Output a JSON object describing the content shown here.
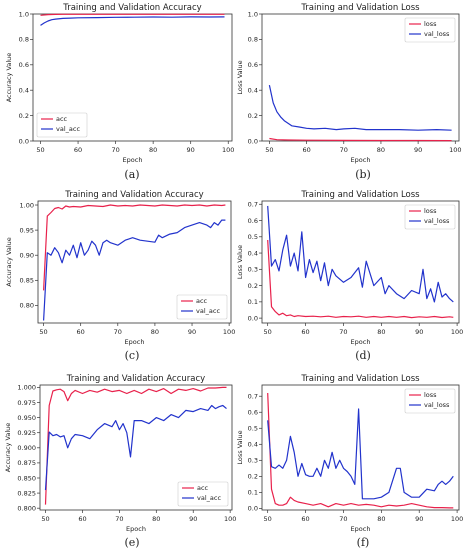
{
  "colors": {
    "train": "#e8214b",
    "val": "#2233cc",
    "axis": "#333333",
    "text": "#222222"
  },
  "captions": [
    "(a)",
    "(b)",
    "(c)",
    "(d)",
    "(e)",
    "(f)"
  ],
  "chart_data": [
    {
      "type": "line",
      "title": "Training and Validation Accuracy",
      "xlabel": "Epoch",
      "ylabel": "Accuracy Value",
      "xlim": [
        48,
        101
      ],
      "ylim": [
        0.0,
        1.0
      ],
      "xticks": [
        50,
        60,
        70,
        80,
        90,
        100
      ],
      "yticks": [
        0.0,
        0.2,
        0.4,
        0.6,
        0.8,
        1.0
      ],
      "ytick_labels": [
        "0.0",
        "0.2",
        "0.4",
        "0.6",
        "0.8",
        "1.0"
      ],
      "legend_position": "bottom-left",
      "series": [
        {
          "name": "acc",
          "color": "#e8214b",
          "x": [
            50,
            52,
            54,
            56,
            60,
            70,
            80,
            90,
            99
          ],
          "y": [
            0.99,
            0.995,
            0.997,
            0.998,
            0.998,
            0.998,
            0.998,
            0.998,
            0.998
          ]
        },
        {
          "name": "val_acc",
          "color": "#2233cc",
          "x": [
            50,
            51,
            52,
            53,
            54,
            56,
            58,
            60,
            65,
            70,
            75,
            80,
            85,
            90,
            95,
            99
          ],
          "y": [
            0.91,
            0.93,
            0.945,
            0.955,
            0.96,
            0.965,
            0.968,
            0.97,
            0.972,
            0.974,
            0.975,
            0.976,
            0.975,
            0.977,
            0.976,
            0.977
          ]
        }
      ]
    },
    {
      "type": "line",
      "title": "Training and Validation Loss",
      "xlabel": "Epoch",
      "ylabel": "Loss Value",
      "xlim": [
        48,
        101
      ],
      "ylim": [
        0.0,
        1.0
      ],
      "xticks": [
        50,
        60,
        70,
        80,
        90,
        100
      ],
      "yticks": [
        0.0,
        0.2,
        0.4,
        0.6,
        0.8,
        1.0
      ],
      "ytick_labels": [
        "0.0",
        "0.2",
        "0.4",
        "0.6",
        "0.8",
        "1.0"
      ],
      "legend_position": "top-right",
      "series": [
        {
          "name": "loss",
          "color": "#e8214b",
          "x": [
            50,
            52,
            55,
            60,
            70,
            80,
            90,
            99
          ],
          "y": [
            0.02,
            0.01,
            0.008,
            0.006,
            0.005,
            0.004,
            0.004,
            0.003
          ]
        },
        {
          "name": "val_loss",
          "color": "#2233cc",
          "x": [
            50,
            51,
            52,
            53,
            54,
            55,
            56,
            58,
            60,
            62,
            65,
            68,
            70,
            73,
            76,
            80,
            85,
            90,
            95,
            99
          ],
          "y": [
            0.44,
            0.3,
            0.23,
            0.19,
            0.16,
            0.14,
            0.12,
            0.11,
            0.1,
            0.095,
            0.1,
            0.09,
            0.095,
            0.1,
            0.09,
            0.09,
            0.09,
            0.085,
            0.09,
            0.085
          ]
        }
      ]
    },
    {
      "type": "line",
      "title": "Training and Validation Accuracy",
      "xlabel": "Epoch",
      "ylabel": "Accuracy Value",
      "xlim": [
        48.5,
        100.5
      ],
      "ylim": [
        0.765,
        1.008
      ],
      "xticks": [
        50,
        60,
        70,
        80,
        90,
        100
      ],
      "yticks": [
        0.8,
        0.85,
        0.9,
        0.95,
        1.0
      ],
      "ytick_labels": [
        "0.80",
        "0.85",
        "0.90",
        "0.95",
        "1.00"
      ],
      "legend_position": "bottom-right",
      "series": [
        {
          "name": "acc",
          "color": "#e8214b",
          "x": [
            50,
            51,
            52,
            53,
            54,
            55,
            56,
            57,
            58,
            60,
            62,
            64,
            66,
            68,
            70,
            72,
            74,
            76,
            78,
            80,
            82,
            84,
            86,
            88,
            90,
            92,
            94,
            96,
            98,
            99
          ],
          "y": [
            0.83,
            0.978,
            0.985,
            0.993,
            0.995,
            0.992,
            0.998,
            0.996,
            0.997,
            0.996,
            0.999,
            0.998,
            0.997,
            1.0,
            0.998,
            0.999,
            0.998,
            1.0,
            0.999,
            0.998,
            1.0,
            0.999,
            0.998,
            1.0,
            0.999,
            1.0,
            0.998,
            1.0,
            0.999,
            1.0
          ]
        },
        {
          "name": "val_acc",
          "color": "#2233cc",
          "x": [
            50,
            51,
            52,
            53,
            54,
            55,
            56,
            57,
            58,
            59,
            60,
            61,
            62,
            63,
            64,
            65,
            66,
            67,
            68,
            70,
            72,
            74,
            76,
            78,
            80,
            81,
            82,
            84,
            86,
            88,
            90,
            92,
            94,
            95,
            96,
            97,
            98,
            99
          ],
          "y": [
            0.77,
            0.905,
            0.9,
            0.915,
            0.905,
            0.885,
            0.91,
            0.9,
            0.92,
            0.895,
            0.925,
            0.9,
            0.91,
            0.928,
            0.92,
            0.9,
            0.925,
            0.93,
            0.925,
            0.92,
            0.93,
            0.935,
            0.93,
            0.928,
            0.926,
            0.94,
            0.935,
            0.942,
            0.945,
            0.955,
            0.96,
            0.965,
            0.96,
            0.955,
            0.965,
            0.96,
            0.97,
            0.97
          ]
        }
      ]
    },
    {
      "type": "line",
      "title": "Training and Validation Loss",
      "xlabel": "Epoch",
      "ylabel": "Loss Value",
      "xlim": [
        48.5,
        100.5
      ],
      "ylim": [
        -0.03,
        0.72
      ],
      "xticks": [
        50,
        60,
        70,
        80,
        90,
        100
      ],
      "yticks": [
        0.0,
        0.1,
        0.2,
        0.3,
        0.4,
        0.5,
        0.6,
        0.7
      ],
      "ytick_labels": [
        "0.0",
        "0.1",
        "0.2",
        "0.3",
        "0.4",
        "0.5",
        "0.6",
        "0.7"
      ],
      "legend_position": "top-right",
      "series": [
        {
          "name": "loss",
          "color": "#e8214b",
          "x": [
            50,
            51,
            52,
            53,
            54,
            55,
            56,
            57,
            58,
            60,
            62,
            64,
            66,
            68,
            70,
            72,
            74,
            76,
            78,
            80,
            82,
            84,
            86,
            88,
            90,
            92,
            94,
            96,
            98,
            99
          ],
          "y": [
            0.48,
            0.07,
            0.04,
            0.02,
            0.03,
            0.015,
            0.02,
            0.01,
            0.015,
            0.01,
            0.012,
            0.008,
            0.012,
            0.005,
            0.01,
            0.008,
            0.012,
            0.005,
            0.01,
            0.005,
            0.01,
            0.005,
            0.01,
            0.003,
            0.008,
            0.005,
            0.01,
            0.004,
            0.008,
            0.005
          ]
        },
        {
          "name": "val_loss",
          "color": "#2233cc",
          "x": [
            50,
            51,
            52,
            53,
            54,
            55,
            56,
            57,
            58,
            59,
            60,
            61,
            62,
            63,
            64,
            65,
            66,
            67,
            68,
            70,
            72,
            74,
            75,
            76,
            78,
            80,
            81,
            82,
            84,
            86,
            88,
            90,
            91,
            92,
            93,
            94,
            95,
            96,
            97,
            98,
            99
          ],
          "y": [
            0.69,
            0.32,
            0.36,
            0.29,
            0.42,
            0.51,
            0.32,
            0.4,
            0.29,
            0.53,
            0.25,
            0.36,
            0.28,
            0.35,
            0.23,
            0.34,
            0.2,
            0.3,
            0.26,
            0.22,
            0.25,
            0.31,
            0.19,
            0.35,
            0.2,
            0.25,
            0.15,
            0.2,
            0.15,
            0.12,
            0.17,
            0.15,
            0.3,
            0.12,
            0.18,
            0.1,
            0.22,
            0.13,
            0.15,
            0.12,
            0.1
          ]
        }
      ]
    },
    {
      "type": "line",
      "title": "Training and Validation Accuracy",
      "xlabel": "Epoch",
      "ylabel": "Accuracy Value",
      "xlim": [
        48.5,
        100.5
      ],
      "ylim": [
        0.797,
        1.004
      ],
      "xticks": [
        50,
        60,
        70,
        80,
        90,
        100
      ],
      "yticks": [
        0.8,
        0.825,
        0.85,
        0.875,
        0.9,
        0.925,
        0.95,
        0.975,
        1.0
      ],
      "ytick_labels": [
        "0.800",
        "0.825",
        "0.850",
        "0.875",
        "0.900",
        "0.925",
        "0.950",
        "0.975",
        "1.000"
      ],
      "legend_position": "bottom-right",
      "series": [
        {
          "name": "acc",
          "color": "#e8214b",
          "x": [
            50,
            51,
            52,
            53,
            54,
            55,
            56,
            57,
            58,
            60,
            62,
            64,
            66,
            68,
            70,
            72,
            74,
            76,
            78,
            80,
            82,
            84,
            86,
            88,
            90,
            92,
            94,
            96,
            98,
            99
          ],
          "y": [
            0.806,
            0.97,
            0.994,
            0.996,
            0.997,
            0.993,
            0.978,
            0.99,
            0.995,
            0.99,
            0.995,
            0.992,
            0.997,
            0.993,
            0.995,
            0.99,
            0.995,
            0.99,
            0.997,
            0.993,
            0.998,
            0.99,
            0.997,
            0.995,
            0.998,
            0.994,
            0.999,
            0.999,
            1.0,
            1.0
          ]
        },
        {
          "name": "val_acc",
          "color": "#2233cc",
          "x": [
            50,
            51,
            52,
            53,
            54,
            55,
            56,
            57,
            58,
            60,
            62,
            64,
            66,
            68,
            69,
            70,
            71,
            72,
            73,
            74,
            76,
            78,
            80,
            82,
            84,
            86,
            88,
            90,
            92,
            94,
            95,
            96,
            97,
            98,
            99
          ],
          "y": [
            0.83,
            0.926,
            0.92,
            0.922,
            0.918,
            0.92,
            0.9,
            0.915,
            0.922,
            0.92,
            0.915,
            0.93,
            0.94,
            0.935,
            0.945,
            0.93,
            0.94,
            0.925,
            0.885,
            0.945,
            0.945,
            0.94,
            0.95,
            0.945,
            0.955,
            0.95,
            0.962,
            0.96,
            0.965,
            0.962,
            0.97,
            0.965,
            0.968,
            0.97,
            0.965
          ]
        }
      ]
    },
    {
      "type": "line",
      "title": "Training and Validation Loss",
      "xlabel": "Epoch",
      "ylabel": "Loss Value",
      "xlim": [
        48.5,
        100.5
      ],
      "ylim": [
        -0.01,
        0.77
      ],
      "xticks": [
        50,
        60,
        70,
        80,
        90,
        100
      ],
      "yticks": [
        0.0,
        0.1,
        0.2,
        0.3,
        0.4,
        0.5,
        0.6,
        0.7
      ],
      "ytick_labels": [
        "0.0",
        "0.1",
        "0.2",
        "0.3",
        "0.4",
        "0.5",
        "0.6",
        "0.7"
      ],
      "legend_position": "top-right",
      "series": [
        {
          "name": "loss",
          "color": "#e8214b",
          "x": [
            50,
            51,
            52,
            53,
            54,
            55,
            56,
            57,
            58,
            60,
            62,
            64,
            66,
            68,
            70,
            72,
            74,
            76,
            78,
            80,
            82,
            84,
            86,
            88,
            90,
            92,
            94,
            96,
            98,
            99
          ],
          "y": [
            0.72,
            0.12,
            0.03,
            0.02,
            0.02,
            0.03,
            0.07,
            0.05,
            0.04,
            0.03,
            0.02,
            0.03,
            0.01,
            0.03,
            0.02,
            0.03,
            0.02,
            0.025,
            0.02,
            0.01,
            0.02,
            0.015,
            0.02,
            0.03,
            0.02,
            0.01,
            0.005,
            0.005,
            0.003,
            0.003
          ]
        },
        {
          "name": "val_loss",
          "color": "#2233cc",
          "x": [
            50,
            51,
            52,
            53,
            54,
            55,
            56,
            57,
            58,
            59,
            60,
            61,
            62,
            63,
            64,
            65,
            66,
            67,
            68,
            69,
            70,
            71,
            72,
            73,
            74,
            75,
            76,
            78,
            80,
            82,
            84,
            85,
            86,
            88,
            90,
            92,
            94,
            95,
            96,
            97,
            98,
            99
          ],
          "y": [
            0.55,
            0.26,
            0.25,
            0.27,
            0.25,
            0.3,
            0.45,
            0.35,
            0.2,
            0.28,
            0.21,
            0.2,
            0.2,
            0.25,
            0.2,
            0.3,
            0.25,
            0.35,
            0.25,
            0.3,
            0.25,
            0.23,
            0.2,
            0.15,
            0.62,
            0.06,
            0.06,
            0.06,
            0.07,
            0.1,
            0.25,
            0.25,
            0.1,
            0.07,
            0.07,
            0.12,
            0.11,
            0.15,
            0.17,
            0.15,
            0.17,
            0.2
          ]
        }
      ]
    }
  ]
}
